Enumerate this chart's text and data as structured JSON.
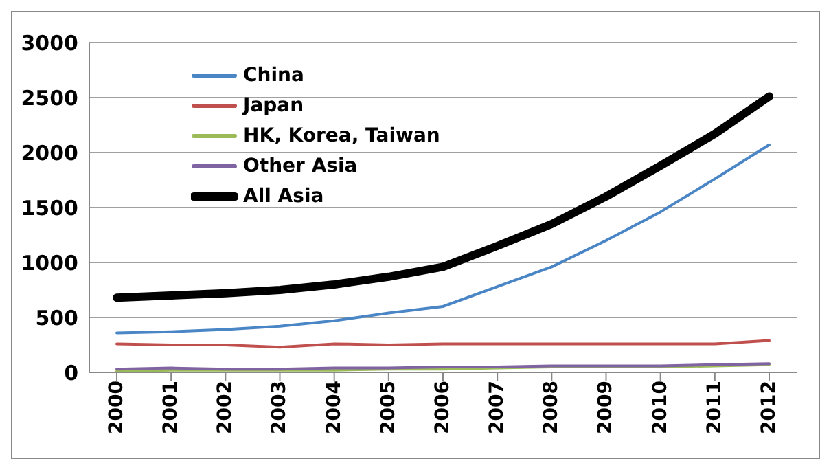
{
  "chart_data": {
    "type": "line",
    "categories": [
      "2000",
      "2001",
      "2002",
      "2003",
      "2004",
      "2005",
      "2006",
      "2007",
      "2008",
      "2009",
      "2010",
      "2011",
      "2012"
    ],
    "series": [
      {
        "name": "China",
        "color": "#4a86c5",
        "values": [
          360,
          370,
          390,
          420,
          470,
          540,
          600,
          780,
          960,
          1200,
          1460,
          1760,
          2070
        ]
      },
      {
        "name": "Japan",
        "color": "#c0504d",
        "values": [
          260,
          250,
          250,
          230,
          260,
          250,
          260,
          260,
          260,
          260,
          260,
          260,
          290
        ]
      },
      {
        "name": "HK, Korea, Taiwan",
        "color": "#9bbb59",
        "values": [
          10,
          20,
          20,
          20,
          20,
          30,
          30,
          40,
          50,
          50,
          50,
          60,
          70
        ]
      },
      {
        "name": "Other Asia",
        "color": "#8064a2",
        "values": [
          30,
          40,
          30,
          30,
          40,
          40,
          50,
          50,
          60,
          60,
          60,
          70,
          80
        ]
      },
      {
        "name": "All Asia",
        "color": "#000000",
        "values": [
          680,
          700,
          720,
          750,
          800,
          870,
          960,
          1150,
          1350,
          1600,
          1880,
          2170,
          2510
        ]
      }
    ],
    "ylim": [
      0,
      3000
    ],
    "yticks": [
      0,
      500,
      1000,
      1500,
      2000,
      2500,
      3000
    ],
    "grid": "y",
    "legend": "top left",
    "marker": "none",
    "line_style": "solid"
  }
}
